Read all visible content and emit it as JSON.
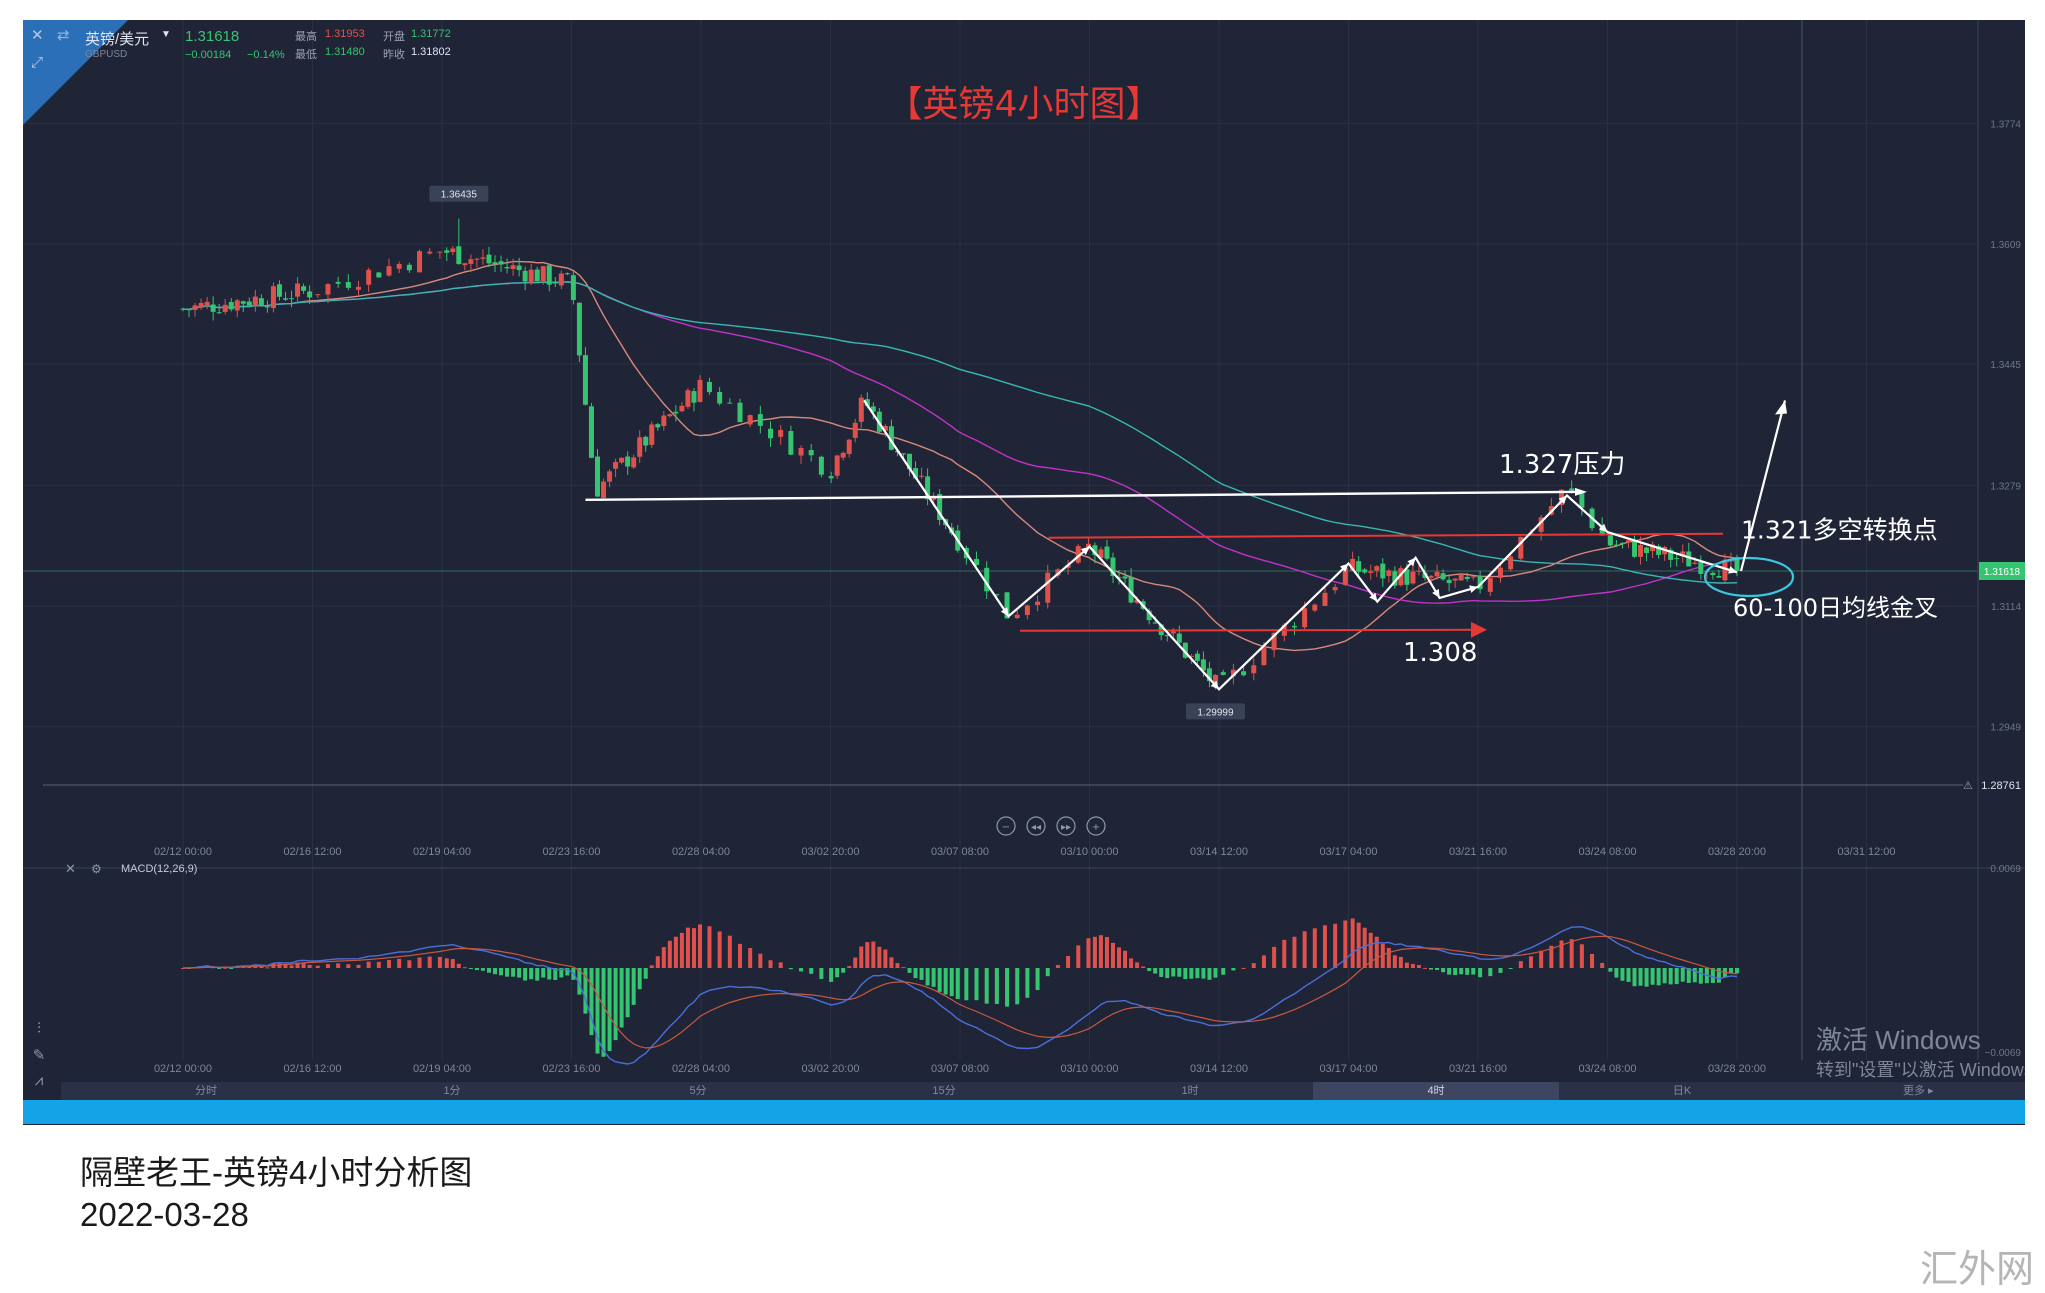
{
  "header": {
    "symbol": "英镑/美元",
    "code": "GBPUSD",
    "price": "1.31618",
    "change": "−0.00184",
    "change_pct": "−0.14%",
    "high_label": "最高",
    "high": "1.31953",
    "open_label": "开盘",
    "open": "1.31772",
    "low_label": "最低",
    "low": "1.31480",
    "prev_close_label": "昨收",
    "prev_close": "1.31802"
  },
  "colors": {
    "background": "#1f2536",
    "up": "#e0514b",
    "down": "#35c46f",
    "ma_short": "#d9897a",
    "ma_mid": "#c132c8",
    "ma_long": "#37b8b0",
    "annotation_red": "#e53935",
    "annotation_white": "#ffffff",
    "ellipse": "#38c8e0",
    "macd_dif": "#4d6ed9",
    "macd_dea": "#c9583e"
  },
  "chart_data": [
    {
      "type": "candlestick",
      "title": "【英镑4小时图】",
      "instrument": "GBPUSD",
      "timeframe": "4h",
      "ylim": [
        1.2876,
        1.384
      ],
      "y_ticks": [
        "1.3774",
        "1.3609",
        "1.3445",
        "1.3279",
        "1.3114",
        "1.2949"
      ],
      "x_ticks": [
        "02/12 00:00",
        "02/16 12:00",
        "02/19 04:00",
        "02/23 16:00",
        "02/28 04:00",
        "03/02 20:00",
        "03/07 08:00",
        "03/10 00:00",
        "03/14 12:00",
        "03/17 04:00",
        "03/21 16:00",
        "03/24 08:00",
        "03/28 20:00",
        "03/31 12:00"
      ],
      "price_labels": {
        "high": "1.36435",
        "low": "1.29999",
        "current": "1.31618",
        "alert": "1.28761"
      },
      "key_points": [
        {
          "date": "02/12 00:00",
          "close": 1.352
        },
        {
          "date": "02/16 12:00",
          "close": 1.3545
        },
        {
          "date": "02/19 04:00",
          "close": 1.36
        },
        {
          "date": "02/23 16:00",
          "close": 1.3555
        },
        {
          "date": "02/24 12:00",
          "close": 1.3272
        },
        {
          "date": "02/28 04:00",
          "close": 1.3415
        },
        {
          "date": "03/02 20:00",
          "close": 1.33
        },
        {
          "date": "03/04 00:00",
          "close": 1.3395
        },
        {
          "date": "03/07 08:00",
          "close": 1.32
        },
        {
          "date": "03/08 08:00",
          "close": 1.31
        },
        {
          "date": "03/10 00:00",
          "close": 1.3195
        },
        {
          "date": "03/14 12:00",
          "close": 1.3
        },
        {
          "date": "03/17 04:00",
          "close": 1.3165
        },
        {
          "date": "03/21 16:00",
          "close": 1.314
        },
        {
          "date": "03/23 12:00",
          "close": 1.3275
        },
        {
          "date": "03/24 08:00",
          "close": 1.32
        },
        {
          "date": "03/28 20:00",
          "close": 1.3162
        }
      ],
      "annotations": [
        {
          "text": "1.327压力",
          "level": 1.327
        },
        {
          "text": "1.321多空转换点",
          "level": 1.321
        },
        {
          "text": "1.308",
          "level": 1.308
        },
        {
          "text": "60-100日均线金叉"
        }
      ]
    },
    {
      "type": "bar",
      "title": "MACD(12,26,9)",
      "y_ticks": [
        "0.0069",
        "−0.0069"
      ],
      "x_ticks": [
        "02/12 00:00",
        "02/16 12:00",
        "02/19 04:00",
        "02/23 16:00",
        "02/28 04:00",
        "03/02 20:00",
        "03/07 08:00",
        "03/10 00:00",
        "03/14 12:00",
        "03/17 04:00",
        "03/21 16:00",
        "03/24 08:00",
        "03/28 20:00"
      ]
    }
  ],
  "timeframes": [
    "分时",
    "1分",
    "5分",
    "15分",
    "1时",
    "4时",
    "日K"
  ],
  "timeframe_more": "更多",
  "watermark": {
    "line1": "激活 Windows",
    "line2": "转到\"设置\"以激活 Windows。"
  },
  "caption": {
    "title": "隔壁老王-英镑4小时分析图",
    "date": "2022-03-28"
  },
  "logo_text": "汇外网"
}
